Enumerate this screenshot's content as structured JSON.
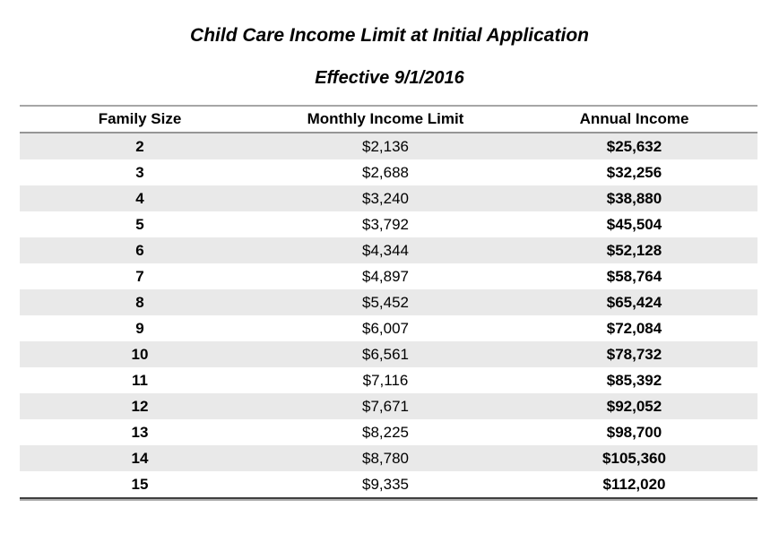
{
  "title": "Child Care Income Limit at Initial Application",
  "subtitle": "Effective 9/1/2016",
  "table": {
    "headers": [
      "Family Size",
      "Monthly Income Limit",
      "Annual Income"
    ],
    "rows": [
      {
        "family_size": "2",
        "monthly": "$2,136",
        "annual": "$25,632"
      },
      {
        "family_size": "3",
        "monthly": "$2,688",
        "annual": "$32,256"
      },
      {
        "family_size": "4",
        "monthly": "$3,240",
        "annual": "$38,880"
      },
      {
        "family_size": "5",
        "monthly": "$3,792",
        "annual": "$45,504"
      },
      {
        "family_size": "6",
        "monthly": "$4,344",
        "annual": "$52,128"
      },
      {
        "family_size": "7",
        "monthly": "$4,897",
        "annual": "$58,764"
      },
      {
        "family_size": "8",
        "monthly": "$5,452",
        "annual": "$65,424"
      },
      {
        "family_size": "9",
        "monthly": "$6,007",
        "annual": "$72,084"
      },
      {
        "family_size": "10",
        "monthly": "$6,561",
        "annual": "$78,732"
      },
      {
        "family_size": "11",
        "monthly": "$7,116",
        "annual": "$85,392"
      },
      {
        "family_size": "12",
        "monthly": "$7,671",
        "annual": "$92,052"
      },
      {
        "family_size": "13",
        "monthly": "$8,225",
        "annual": "$98,700"
      },
      {
        "family_size": "14",
        "monthly": "$8,780",
        "annual": "$105,360"
      },
      {
        "family_size": "15",
        "monthly": "$9,335",
        "annual": "$112,020"
      }
    ]
  },
  "colors": {
    "stripe_gray": "#e9e9e9",
    "rule_top_gray": "#a6a6a6",
    "rule_header_gray": "#969696",
    "rule_bottom_dark": "#3f3f3f",
    "text": "#000000",
    "background": "#ffffff"
  },
  "chart_data": {
    "type": "table",
    "title": "Child Care Income Limit at Initial Application",
    "subtitle": "Effective 9/1/2016",
    "columns": [
      "Family Size",
      "Monthly Income Limit",
      "Annual Income"
    ],
    "family_sizes": [
      2,
      3,
      4,
      5,
      6,
      7,
      8,
      9,
      10,
      11,
      12,
      13,
      14,
      15
    ],
    "monthly_income_limits": [
      2136,
      2688,
      3240,
      3792,
      4344,
      4897,
      5452,
      6007,
      6561,
      7116,
      7671,
      8225,
      8780,
      9335
    ],
    "annual_incomes": [
      25632,
      32256,
      38880,
      45504,
      52128,
      58764,
      65424,
      72084,
      78732,
      85392,
      92052,
      98700,
      105360,
      112020
    ]
  }
}
